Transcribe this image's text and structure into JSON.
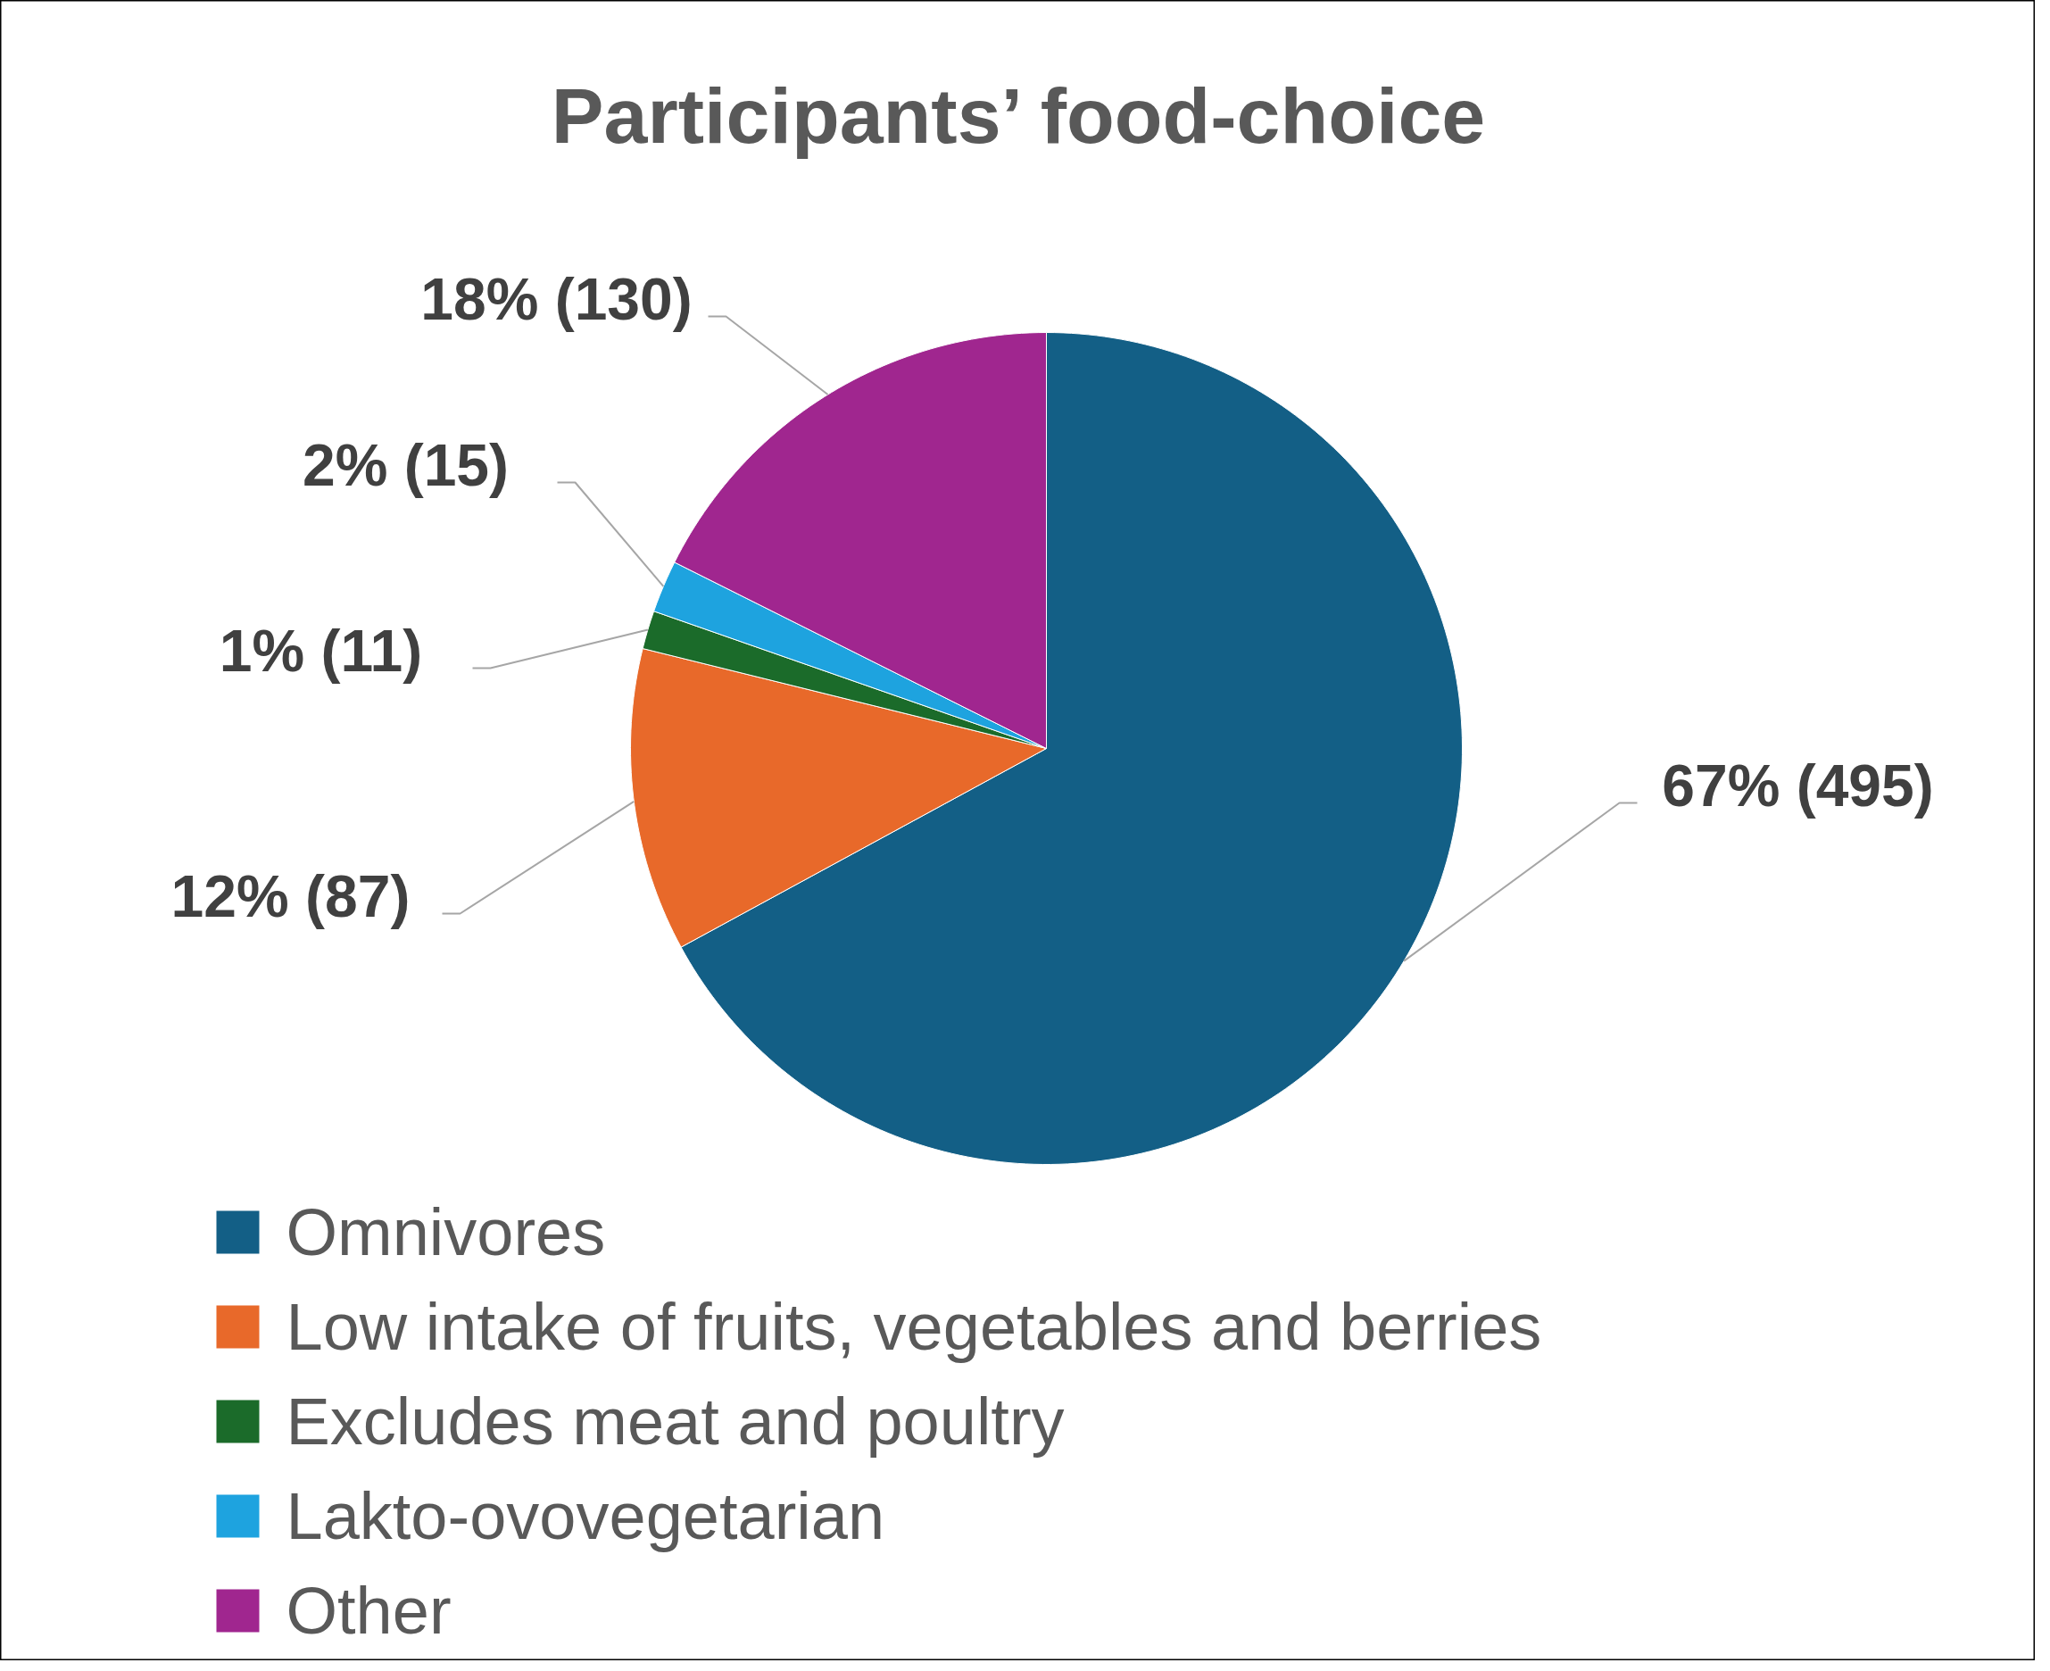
{
  "chart_data": {
    "type": "pie",
    "title": "Participants’ food-choice",
    "categories": [
      "Omnivores",
      "Low intake of fruits, vegetables and berries",
      "Excludes meat and poultry",
      "Lakto-ovovegetarian",
      "Other"
    ],
    "values": [
      495,
      87,
      11,
      15,
      130
    ],
    "colors": [
      "#135f86",
      "#e8692a",
      "#1b6b2a",
      "#1ea3df",
      "#a0268f"
    ],
    "value_labels": [
      "67% (495)",
      "12% (87)",
      "1% (11)",
      "2% (15)",
      "18% (130)"
    ],
    "legend": "bottom"
  }
}
